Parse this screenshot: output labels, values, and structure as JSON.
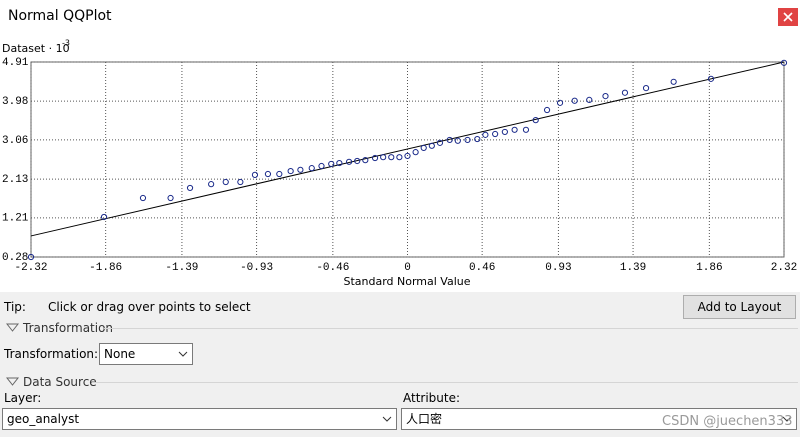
{
  "window": {
    "title": "Normal QQPlot"
  },
  "chart_data": {
    "type": "scatter",
    "y_label": "Dataset · 10",
    "y_label_exponent": "-3",
    "x_label": "Standard Normal Value",
    "x": [
      -2.32,
      -1.87,
      -1.63,
      -1.46,
      -1.34,
      -1.21,
      -1.12,
      -1.03,
      -0.94,
      -0.86,
      -0.79,
      -0.72,
      -0.66,
      -0.59,
      -0.53,
      -0.47,
      -0.42,
      -0.36,
      -0.31,
      -0.26,
      -0.2,
      -0.15,
      -0.1,
      -0.05,
      0,
      0.05,
      0.1,
      0.15,
      0.2,
      0.26,
      0.31,
      0.37,
      0.43,
      0.48,
      0.54,
      0.6,
      0.66,
      0.73,
      0.79,
      0.86,
      0.94,
      1.03,
      1.12,
      1.22,
      1.34,
      1.47,
      1.64,
      1.87,
      2.32
    ],
    "values": [
      0.28,
      1.23,
      1.68,
      1.68,
      1.92,
      2.01,
      2.06,
      2.06,
      2.23,
      2.25,
      2.25,
      2.32,
      2.35,
      2.39,
      2.44,
      2.49,
      2.51,
      2.54,
      2.56,
      2.58,
      2.63,
      2.65,
      2.65,
      2.65,
      2.68,
      2.77,
      2.87,
      2.92,
      2.99,
      3.06,
      3.04,
      3.06,
      3.08,
      3.18,
      3.2,
      3.25,
      3.3,
      3.3,
      3.53,
      3.77,
      3.94,
      3.99,
      4.01,
      4.1,
      4.18,
      4.29,
      4.44,
      4.51,
      4.89
    ],
    "color": "#1a2a8a",
    "fit_line": {
      "x": [
        -2.32,
        2.32
      ],
      "y": [
        0.78,
        4.91
      ],
      "color": "#000000"
    },
    "xlim": [
      -2.32,
      2.32
    ],
    "xticks": [
      -2.32,
      -1.86,
      -1.39,
      -0.93,
      -0.46,
      0,
      0.46,
      0.93,
      1.39,
      1.86,
      2.32
    ],
    "ylim": [
      0.28,
      4.91
    ],
    "yticks": [
      0.28,
      1.21,
      2.13,
      3.06,
      3.98,
      4.91
    ],
    "grid": true
  },
  "tip": {
    "label": "Tip:",
    "text": "Click or drag over points to select"
  },
  "add_to_layout": "Add to Layout",
  "transformation": {
    "section": "Transformation",
    "label": "Transformation:",
    "value": "None"
  },
  "data_source": {
    "section": "Data Source",
    "layer_label": "Layer:",
    "layer": "geo_analyst",
    "attribute_label": "Attribute:",
    "attribute": "人口密"
  },
  "watermark": "CSDN @juechen333"
}
